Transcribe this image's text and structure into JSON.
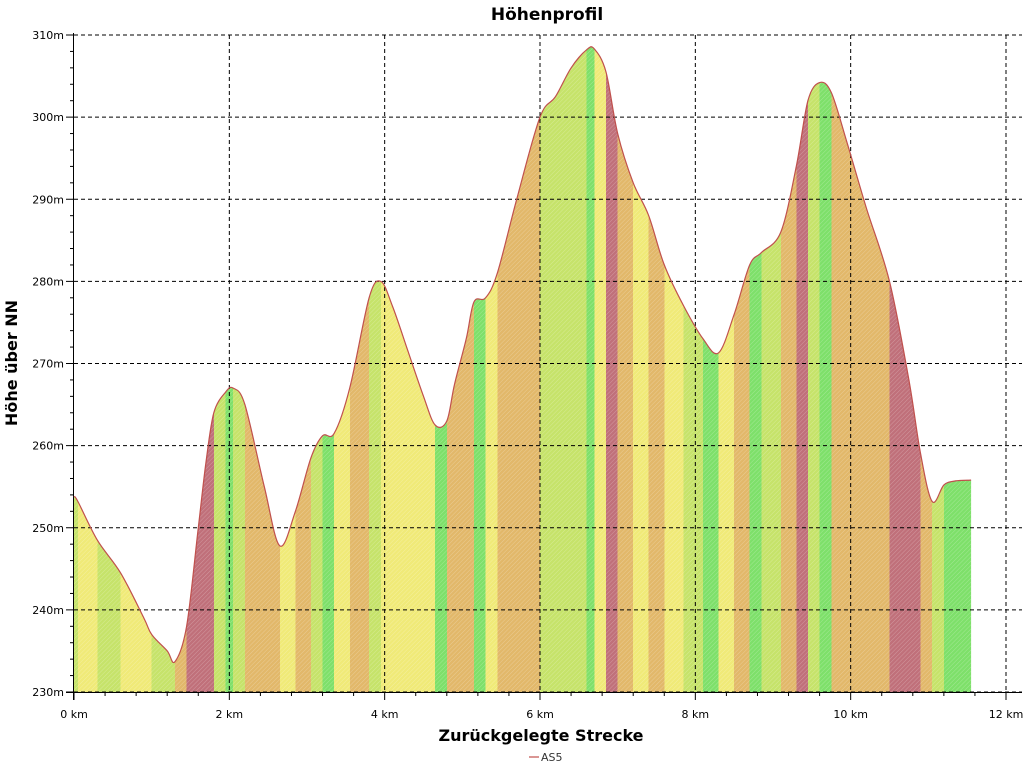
{
  "chart_data": {
    "type": "area",
    "title": "Höhenprofil",
    "xlabel": "Zurückgelegte Strecke",
    "ylabel": "Höhe über NN",
    "xlim": [
      0,
      12
    ],
    "ylim": [
      230,
      310
    ],
    "x_ticks": [
      0,
      2,
      4,
      6,
      8,
      10,
      12
    ],
    "x_tick_labels": [
      "0 km",
      "2 km",
      "4 km",
      "6 km",
      "8 km",
      "10 km",
      "12 km"
    ],
    "y_ticks": [
      230,
      240,
      250,
      260,
      270,
      280,
      290,
      300,
      310
    ],
    "y_tick_labels": [
      "230m",
      "240m",
      "250m",
      "260m",
      "270m",
      "280m",
      "290m",
      "300m",
      "310m"
    ],
    "grid": true,
    "legend_position": "bottom-center",
    "fill_gradient": "slope (green = flat, yellow = moderate, red = steep)",
    "series": [
      {
        "name": "AS5",
        "color": "#c0504d",
        "x": [
          0,
          0.05,
          0.3,
          0.6,
          0.9,
          1.0,
          1.2,
          1.3,
          1.45,
          1.6,
          1.7,
          1.8,
          1.95,
          2.05,
          2.2,
          2.45,
          2.65,
          2.85,
          3.05,
          3.2,
          3.35,
          3.55,
          3.8,
          3.95,
          4.1,
          4.3,
          4.5,
          4.65,
          4.8,
          4.9,
          5.05,
          5.15,
          5.3,
          5.45,
          5.7,
          6.0,
          6.2,
          6.4,
          6.6,
          6.7,
          6.85,
          7.0,
          7.2,
          7.4,
          7.6,
          7.85,
          8.1,
          8.3,
          8.5,
          8.7,
          8.85,
          9.1,
          9.3,
          9.45,
          9.6,
          9.75,
          9.95,
          10.2,
          10.5,
          10.75,
          10.9,
          11.05,
          11.2,
          11.35,
          11.55
        ],
        "values": [
          253.8,
          253.2,
          248.5,
          244.5,
          239.0,
          237.0,
          235.0,
          233.7,
          238.0,
          250.0,
          258.0,
          264.0,
          266.5,
          267.0,
          265.0,
          255.0,
          247.8,
          252.0,
          258.5,
          261.2,
          261.5,
          267.0,
          278.0,
          280.0,
          277.0,
          271.5,
          266.0,
          262.5,
          263.0,
          267.5,
          273.0,
          277.5,
          278.0,
          281.0,
          290.0,
          300.0,
          302.5,
          306.0,
          308.2,
          308.3,
          305.5,
          298.0,
          292.0,
          288.0,
          282.0,
          277.0,
          273.0,
          271.3,
          276.0,
          282.0,
          283.5,
          286.0,
          294.0,
          302.0,
          304.2,
          303.0,
          297.0,
          289.0,
          280.0,
          268.0,
          259.0,
          253.2,
          255.2,
          255.7,
          255.8
        ]
      }
    ]
  }
}
